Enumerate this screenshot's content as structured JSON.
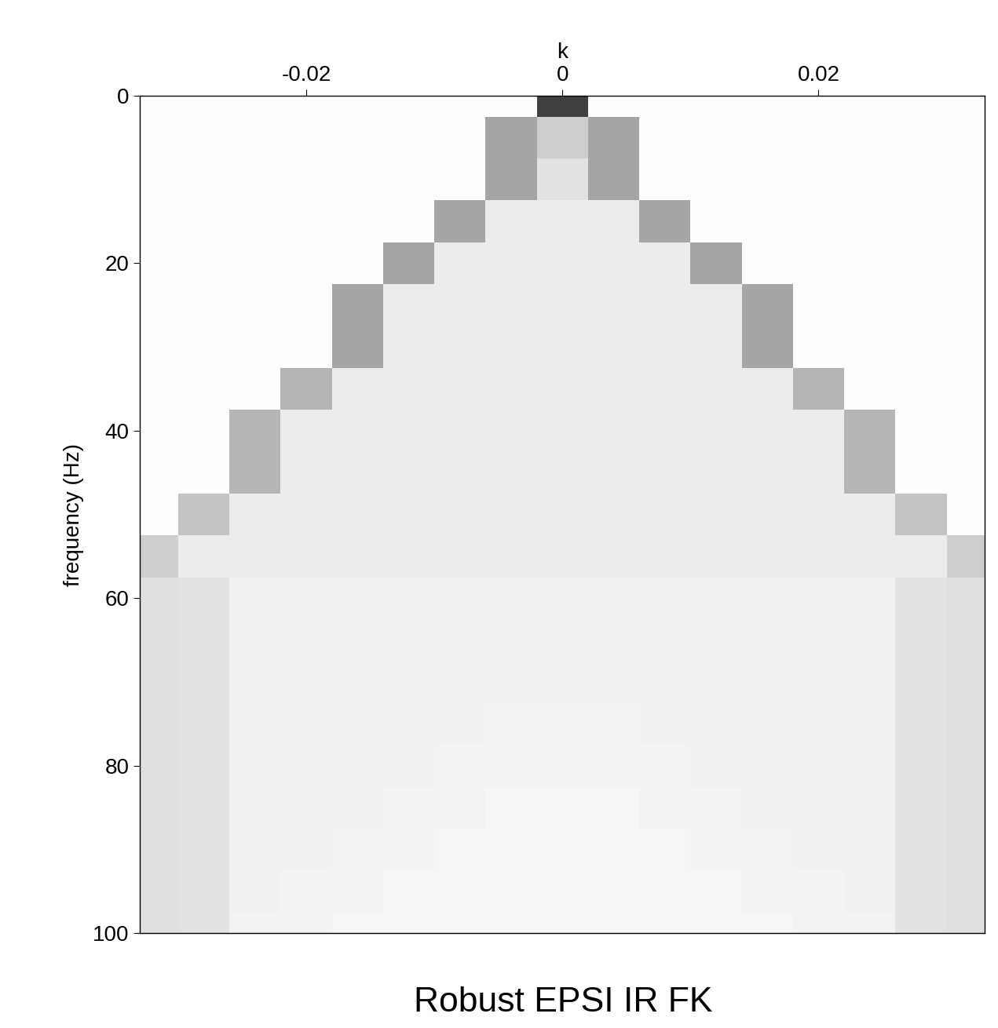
{
  "chart_data": {
    "type": "heatmap",
    "title": "Robust EPSI IR FK",
    "x_label": "k",
    "y_label": "frequency (Hz)",
    "x": [
      -0.032,
      -0.028,
      -0.024,
      -0.02,
      -0.016,
      -0.012,
      -0.008,
      -0.004,
      0,
      0.004,
      0.008,
      0.012,
      0.016,
      0.02,
      0.024,
      0.028,
      0.032
    ],
    "y": [
      0,
      5,
      10,
      15,
      20,
      25,
      30,
      35,
      40,
      45,
      50,
      55,
      60,
      65,
      70,
      75,
      80,
      85,
      90,
      95,
      100
    ],
    "cells": [
      [
        0.02,
        0.02,
        0.02,
        0.02,
        0.02,
        0.02,
        0.02,
        0.02,
        0.8,
        0.02,
        0.02,
        0.02,
        0.02,
        0.02,
        0.02,
        0.02,
        0.02
      ],
      [
        0.02,
        0.02,
        0.02,
        0.02,
        0.02,
        0.02,
        0.02,
        0.45,
        0.3,
        0.45,
        0.02,
        0.02,
        0.02,
        0.02,
        0.02,
        0.02,
        0.02
      ],
      [
        0.02,
        0.02,
        0.02,
        0.02,
        0.02,
        0.02,
        0.02,
        0.45,
        0.2,
        0.45,
        0.02,
        0.02,
        0.02,
        0.02,
        0.02,
        0.02,
        0.02
      ],
      [
        0.02,
        0.02,
        0.02,
        0.02,
        0.02,
        0.02,
        0.45,
        0.15,
        0.15,
        0.15,
        0.45,
        0.02,
        0.02,
        0.02,
        0.02,
        0.02,
        0.02
      ],
      [
        0.02,
        0.02,
        0.02,
        0.02,
        0.02,
        0.45,
        0.15,
        0.15,
        0.15,
        0.15,
        0.15,
        0.45,
        0.02,
        0.02,
        0.02,
        0.02,
        0.02
      ],
      [
        0.02,
        0.02,
        0.02,
        0.02,
        0.45,
        0.15,
        0.15,
        0.15,
        0.15,
        0.15,
        0.15,
        0.15,
        0.45,
        0.02,
        0.02,
        0.02,
        0.02
      ],
      [
        0.02,
        0.02,
        0.02,
        0.02,
        0.45,
        0.15,
        0.15,
        0.15,
        0.15,
        0.15,
        0.15,
        0.15,
        0.45,
        0.02,
        0.02,
        0.02,
        0.02
      ],
      [
        0.02,
        0.02,
        0.02,
        0.4,
        0.15,
        0.15,
        0.15,
        0.15,
        0.15,
        0.15,
        0.15,
        0.15,
        0.15,
        0.4,
        0.02,
        0.02,
        0.02
      ],
      [
        0.02,
        0.02,
        0.4,
        0.15,
        0.15,
        0.15,
        0.15,
        0.15,
        0.15,
        0.15,
        0.15,
        0.15,
        0.15,
        0.15,
        0.4,
        0.02,
        0.02
      ],
      [
        0.02,
        0.02,
        0.4,
        0.15,
        0.15,
        0.15,
        0.15,
        0.15,
        0.15,
        0.15,
        0.15,
        0.15,
        0.15,
        0.15,
        0.4,
        0.02,
        0.02
      ],
      [
        0.02,
        0.35,
        0.15,
        0.15,
        0.15,
        0.15,
        0.15,
        0.15,
        0.15,
        0.15,
        0.15,
        0.15,
        0.15,
        0.15,
        0.15,
        0.35,
        0.02
      ],
      [
        0.3,
        0.15,
        0.15,
        0.15,
        0.15,
        0.15,
        0.15,
        0.15,
        0.15,
        0.15,
        0.15,
        0.15,
        0.15,
        0.15,
        0.15,
        0.15,
        0.3
      ],
      [
        0.22,
        0.2,
        0.12,
        0.12,
        0.12,
        0.12,
        0.12,
        0.12,
        0.12,
        0.12,
        0.12,
        0.12,
        0.12,
        0.12,
        0.12,
        0.2,
        0.22
      ],
      [
        0.22,
        0.2,
        0.12,
        0.12,
        0.12,
        0.12,
        0.12,
        0.12,
        0.12,
        0.12,
        0.12,
        0.12,
        0.12,
        0.12,
        0.12,
        0.2,
        0.22
      ],
      [
        0.22,
        0.2,
        0.12,
        0.12,
        0.12,
        0.12,
        0.12,
        0.12,
        0.12,
        0.12,
        0.12,
        0.12,
        0.12,
        0.12,
        0.12,
        0.2,
        0.22
      ],
      [
        0.22,
        0.2,
        0.12,
        0.12,
        0.12,
        0.12,
        0.12,
        0.1,
        0.1,
        0.1,
        0.12,
        0.12,
        0.12,
        0.12,
        0.12,
        0.2,
        0.22
      ],
      [
        0.22,
        0.2,
        0.12,
        0.12,
        0.12,
        0.12,
        0.1,
        0.1,
        0.1,
        0.1,
        0.1,
        0.12,
        0.12,
        0.12,
        0.12,
        0.2,
        0.22
      ],
      [
        0.22,
        0.2,
        0.12,
        0.12,
        0.12,
        0.1,
        0.1,
        0.08,
        0.08,
        0.08,
        0.1,
        0.1,
        0.12,
        0.12,
        0.12,
        0.2,
        0.22
      ],
      [
        0.22,
        0.2,
        0.12,
        0.12,
        0.1,
        0.1,
        0.08,
        0.08,
        0.08,
        0.08,
        0.08,
        0.1,
        0.1,
        0.12,
        0.12,
        0.2,
        0.22
      ],
      [
        0.22,
        0.2,
        0.12,
        0.1,
        0.1,
        0.08,
        0.08,
        0.08,
        0.08,
        0.08,
        0.08,
        0.08,
        0.1,
        0.1,
        0.12,
        0.2,
        0.22
      ],
      [
        0.22,
        0.2,
        0.1,
        0.1,
        0.08,
        0.08,
        0.08,
        0.08,
        0.08,
        0.08,
        0.08,
        0.08,
        0.08,
        0.1,
        0.1,
        0.2,
        0.22
      ]
    ],
    "color_range": [
      0,
      1
    ],
    "xlim": [
      -0.033,
      0.033
    ],
    "ylim": [
      100,
      0
    ],
    "xticks": [
      -0.02,
      0,
      0.02
    ],
    "yticks": [
      0,
      20,
      40,
      60,
      80,
      100
    ]
  }
}
